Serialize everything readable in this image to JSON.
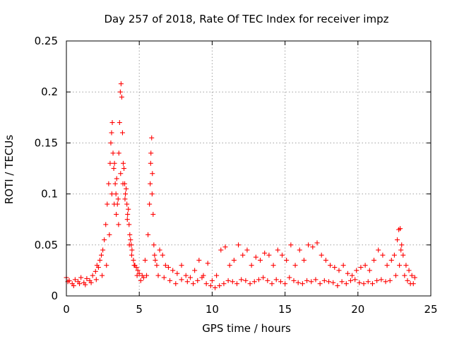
{
  "chart_data": {
    "type": "scatter",
    "title": "Day 257 of 2018, Rate Of TEC Index for receiver impz",
    "xlabel": "GPS time / hours",
    "ylabel": "ROTI / TECUs",
    "xlim": [
      0,
      25
    ],
    "ylim": [
      0,
      0.25
    ],
    "xticks": [
      0,
      5,
      10,
      15,
      20,
      25
    ],
    "xtick_labels": [
      "0",
      "5",
      "10",
      "15",
      "20",
      "25"
    ],
    "yticks": [
      0,
      0.05,
      0.1,
      0.15,
      0.2,
      0.25
    ],
    "ytick_labels": [
      "0",
      "0.05",
      "0.1",
      "0.15",
      "0.2",
      "0.25"
    ],
    "grid": true,
    "marker": "plus",
    "color": "#ff0000",
    "series": [
      {
        "name": "ROTI",
        "x": [
          0.0,
          0.2,
          0.4,
          0.6,
          0.8,
          1.0,
          1.2,
          1.4,
          1.6,
          1.8,
          2.0,
          2.1,
          2.2,
          2.3,
          2.4,
          2.5,
          2.6,
          2.7,
          2.8,
          2.9,
          3.0,
          3.05,
          3.1,
          3.15,
          3.2,
          3.25,
          3.3,
          3.35,
          3.4,
          3.45,
          3.5,
          3.55,
          3.6,
          3.65,
          3.7,
          3.75,
          3.8,
          3.85,
          3.9,
          3.95,
          4.0,
          4.05,
          4.1,
          4.15,
          4.2,
          4.25,
          4.3,
          4.35,
          4.4,
          4.45,
          4.5,
          4.6,
          4.7,
          4.8,
          4.9,
          5.0,
          5.2,
          5.4,
          5.6,
          5.7,
          5.75,
          5.8,
          5.85,
          5.9,
          5.95,
          6.0,
          6.1,
          6.2,
          6.4,
          6.6,
          6.8,
          7.0,
          7.3,
          7.6,
          7.9,
          8.2,
          8.5,
          8.8,
          9.1,
          9.4,
          9.7,
          10.0,
          10.3,
          10.6,
          10.9,
          11.2,
          11.5,
          11.8,
          12.1,
          12.4,
          12.7,
          13.0,
          13.3,
          13.6,
          13.9,
          14.2,
          14.5,
          14.8,
          15.1,
          15.4,
          15.7,
          16.0,
          16.3,
          16.6,
          16.9,
          17.2,
          17.5,
          17.8,
          18.1,
          18.4,
          18.7,
          19.0,
          19.3,
          19.6,
          19.9,
          20.2,
          20.5,
          20.8,
          21.1,
          21.4,
          21.7,
          22.0,
          22.3,
          22.5,
          22.7,
          22.8,
          22.9,
          23.0,
          23.1,
          23.3,
          23.5,
          23.7,
          23.9,
          0.1,
          0.5,
          0.9,
          1.3,
          1.7,
          2.05,
          2.45,
          2.75,
          2.95,
          3.12,
          3.28,
          3.42,
          3.58,
          3.72,
          3.88,
          4.02,
          4.18,
          4.32,
          4.48,
          4.65,
          4.85,
          5.1,
          5.3,
          5.5,
          5.78,
          5.88,
          6.05,
          6.3,
          6.7,
          7.1,
          7.5,
          7.9,
          8.3,
          8.7,
          9.0,
          9.3,
          9.6,
          9.9,
          10.2,
          10.5,
          10.8,
          11.1,
          11.4,
          11.7,
          12.0,
          12.3,
          12.6,
          12.9,
          13.2,
          13.5,
          13.8,
          14.1,
          14.4,
          14.7,
          15.0,
          15.3,
          15.6,
          15.9,
          16.2,
          16.5,
          16.8,
          17.1,
          17.4,
          17.7,
          18.0,
          18.3,
          18.6,
          18.9,
          19.2,
          19.5,
          19.8,
          20.1,
          20.4,
          20.7,
          21.0,
          21.3,
          21.6,
          21.9,
          22.2,
          22.6,
          22.85,
          22.95,
          23.2,
          23.4,
          23.6,
          23.8
        ],
        "y": [
          0.018,
          0.015,
          0.012,
          0.016,
          0.014,
          0.018,
          0.013,
          0.017,
          0.015,
          0.02,
          0.024,
          0.03,
          0.028,
          0.035,
          0.04,
          0.045,
          0.055,
          0.07,
          0.09,
          0.11,
          0.13,
          0.15,
          0.16,
          0.17,
          0.14,
          0.125,
          0.13,
          0.11,
          0.1,
          0.115,
          0.09,
          0.095,
          0.14,
          0.17,
          0.2,
          0.208,
          0.195,
          0.16,
          0.13,
          0.125,
          0.11,
          0.1,
          0.105,
          0.09,
          0.08,
          0.085,
          0.07,
          0.06,
          0.055,
          0.05,
          0.045,
          0.035,
          0.03,
          0.028,
          0.025,
          0.022,
          0.02,
          0.035,
          0.06,
          0.09,
          0.11,
          0.14,
          0.155,
          0.12,
          0.08,
          0.05,
          0.035,
          0.03,
          0.045,
          0.04,
          0.03,
          0.028,
          0.025,
          0.022,
          0.03,
          0.02,
          0.018,
          0.025,
          0.035,
          0.02,
          0.032,
          0.015,
          0.02,
          0.045,
          0.048,
          0.03,
          0.035,
          0.05,
          0.04,
          0.045,
          0.03,
          0.038,
          0.035,
          0.042,
          0.04,
          0.03,
          0.045,
          0.04,
          0.035,
          0.05,
          0.03,
          0.045,
          0.035,
          0.05,
          0.048,
          0.052,
          0.04,
          0.035,
          0.03,
          0.028,
          0.025,
          0.03,
          0.022,
          0.02,
          0.025,
          0.028,
          0.03,
          0.025,
          0.035,
          0.045,
          0.04,
          0.03,
          0.035,
          0.04,
          0.055,
          0.065,
          0.066,
          0.05,
          0.04,
          0.03,
          0.025,
          0.02,
          0.018,
          0.014,
          0.01,
          0.012,
          0.011,
          0.013,
          0.016,
          0.02,
          0.03,
          0.06,
          0.1,
          0.09,
          0.08,
          0.07,
          0.12,
          0.11,
          0.095,
          0.075,
          0.05,
          0.04,
          0.03,
          0.02,
          0.015,
          0.018,
          0.02,
          0.13,
          0.1,
          0.04,
          0.02,
          0.018,
          0.015,
          0.012,
          0.016,
          0.014,
          0.012,
          0.015,
          0.018,
          0.012,
          0.01,
          0.008,
          0.01,
          0.012,
          0.015,
          0.014,
          0.012,
          0.016,
          0.015,
          0.012,
          0.014,
          0.016,
          0.018,
          0.015,
          0.012,
          0.016,
          0.014,
          0.012,
          0.018,
          0.015,
          0.013,
          0.012,
          0.015,
          0.014,
          0.016,
          0.012,
          0.015,
          0.014,
          0.013,
          0.01,
          0.014,
          0.012,
          0.015,
          0.016,
          0.013,
          0.012,
          0.014,
          0.012,
          0.015,
          0.016,
          0.014,
          0.015,
          0.02,
          0.03,
          0.045,
          0.02,
          0.015,
          0.012,
          0.012
        ]
      }
    ]
  }
}
